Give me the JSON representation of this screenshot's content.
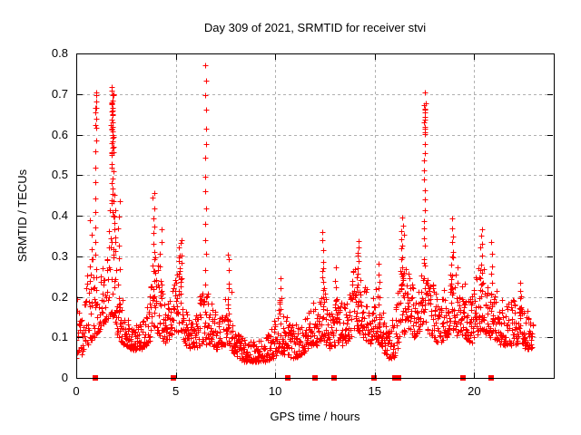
{
  "chart_data": {
    "type": "scatter",
    "title": "Day 309 of 2021, SRMTID for receiver stvi",
    "xlabel": "GPS time / hours",
    "ylabel": "SRMTID / TECUs",
    "xlim": [
      0,
      24
    ],
    "ylim": [
      0,
      0.8
    ],
    "xticks": {
      "values": [
        0,
        5,
        10,
        15,
        20
      ],
      "labels": [
        "0",
        "5",
        "10",
        "15",
        "20"
      ]
    },
    "yticks": {
      "values": [
        0,
        0.1,
        0.2,
        0.3,
        0.4,
        0.5,
        0.6,
        0.7,
        0.8
      ],
      "labels": [
        "0",
        "0.1",
        "0.2",
        "0.3",
        "0.4",
        "0.5",
        "0.6",
        "0.7",
        "0.8"
      ]
    },
    "grid": {
      "show": true,
      "color": "#b0b0b0",
      "dash": "3,3"
    },
    "border_color": "#000000",
    "marker": {
      "shape": "plus",
      "color": "#ff0000",
      "size": 7
    },
    "series_name": "SRMTID",
    "seed": 309,
    "sample_step_hours": 0.013,
    "x_start": 0,
    "x_end": 22.95,
    "band_skew": 1.6,
    "band_envelope": [
      [
        0.0,
        0.05,
        0.2
      ],
      [
        0.3,
        0.06,
        0.17
      ],
      [
        0.6,
        0.08,
        0.28
      ],
      [
        0.9,
        0.1,
        0.3
      ],
      [
        1.2,
        0.12,
        0.26
      ],
      [
        1.5,
        0.14,
        0.3
      ],
      [
        1.75,
        0.16,
        0.45
      ],
      [
        1.85,
        0.15,
        0.4
      ],
      [
        2.1,
        0.1,
        0.28
      ],
      [
        2.4,
        0.08,
        0.16
      ],
      [
        2.8,
        0.07,
        0.13
      ],
      [
        3.2,
        0.07,
        0.14
      ],
      [
        3.6,
        0.08,
        0.18
      ],
      [
        3.9,
        0.12,
        0.32
      ],
      [
        4.2,
        0.1,
        0.26
      ],
      [
        4.5,
        0.08,
        0.17
      ],
      [
        4.9,
        0.1,
        0.24
      ],
      [
        5.2,
        0.12,
        0.32
      ],
      [
        5.5,
        0.08,
        0.17
      ],
      [
        5.9,
        0.07,
        0.15
      ],
      [
        6.2,
        0.08,
        0.2
      ],
      [
        6.5,
        0.08,
        0.24
      ],
      [
        6.8,
        0.08,
        0.2
      ],
      [
        7.1,
        0.07,
        0.15
      ],
      [
        7.4,
        0.08,
        0.18
      ],
      [
        7.7,
        0.08,
        0.26
      ],
      [
        8.0,
        0.05,
        0.12
      ],
      [
        8.5,
        0.04,
        0.1
      ],
      [
        9.0,
        0.04,
        0.09
      ],
      [
        9.5,
        0.04,
        0.1
      ],
      [
        9.9,
        0.05,
        0.13
      ],
      [
        10.2,
        0.06,
        0.2
      ],
      [
        10.6,
        0.05,
        0.15
      ],
      [
        11.0,
        0.05,
        0.13
      ],
      [
        11.4,
        0.06,
        0.15
      ],
      [
        11.8,
        0.08,
        0.2
      ],
      [
        12.1,
        0.08,
        0.18
      ],
      [
        12.4,
        0.1,
        0.28
      ],
      [
        12.7,
        0.07,
        0.15
      ],
      [
        13.0,
        0.08,
        0.22
      ],
      [
        13.4,
        0.08,
        0.18
      ],
      [
        13.8,
        0.1,
        0.24
      ],
      [
        14.1,
        0.12,
        0.3
      ],
      [
        14.4,
        0.1,
        0.26
      ],
      [
        14.7,
        0.08,
        0.2
      ],
      [
        15.0,
        0.1,
        0.24
      ],
      [
        15.3,
        0.08,
        0.2
      ],
      [
        15.6,
        0.05,
        0.13
      ],
      [
        16.0,
        0.05,
        0.15
      ],
      [
        16.3,
        0.1,
        0.3
      ],
      [
        16.6,
        0.12,
        0.28
      ],
      [
        17.0,
        0.1,
        0.22
      ],
      [
        17.3,
        0.12,
        0.25
      ],
      [
        17.5,
        0.14,
        0.3
      ],
      [
        17.8,
        0.1,
        0.25
      ],
      [
        18.2,
        0.08,
        0.2
      ],
      [
        18.6,
        0.1,
        0.24
      ],
      [
        18.9,
        0.12,
        0.3
      ],
      [
        19.2,
        0.1,
        0.28
      ],
      [
        19.5,
        0.1,
        0.24
      ],
      [
        19.8,
        0.08,
        0.2
      ],
      [
        20.1,
        0.1,
        0.26
      ],
      [
        20.4,
        0.12,
        0.3
      ],
      [
        20.7,
        0.1,
        0.28
      ],
      [
        21.0,
        0.1,
        0.24
      ],
      [
        21.3,
        0.08,
        0.2
      ],
      [
        21.6,
        0.08,
        0.18
      ],
      [
        22.0,
        0.08,
        0.2
      ],
      [
        22.3,
        0.09,
        0.22
      ],
      [
        22.6,
        0.07,
        0.17
      ],
      [
        22.95,
        0.07,
        0.14
      ]
    ],
    "spikes": [
      [
        0.75,
        0.22,
        0.39,
        6,
        0.1
      ],
      [
        0.97,
        0.3,
        0.7,
        12,
        0.05
      ],
      [
        0.99,
        0.62,
        0.7,
        6,
        0.05
      ],
      [
        1.8,
        0.4,
        0.715,
        25,
        0.12
      ],
      [
        1.82,
        0.55,
        0.71,
        18,
        0.1
      ],
      [
        1.92,
        0.3,
        0.45,
        10,
        0.08
      ],
      [
        2.15,
        0.2,
        0.43,
        8,
        0.08
      ],
      [
        3.9,
        0.18,
        0.46,
        14,
        0.1
      ],
      [
        4.25,
        0.18,
        0.37,
        7,
        0.08
      ],
      [
        5.2,
        0.2,
        0.345,
        12,
        0.15
      ],
      [
        6.5,
        0.26,
        0.775,
        14,
        0.05
      ],
      [
        7.65,
        0.12,
        0.31,
        9,
        0.06
      ],
      [
        10.25,
        0.13,
        0.25,
        6,
        0.08
      ],
      [
        12.4,
        0.15,
        0.36,
        10,
        0.08
      ],
      [
        13.05,
        0.14,
        0.27,
        6,
        0.08
      ],
      [
        14.15,
        0.18,
        0.34,
        13,
        0.12
      ],
      [
        15.2,
        0.14,
        0.28,
        8,
        0.1
      ],
      [
        16.4,
        0.2,
        0.39,
        16,
        0.18
      ],
      [
        17.5,
        0.25,
        0.7,
        20,
        0.06
      ],
      [
        17.52,
        0.6,
        0.68,
        8,
        0.05
      ],
      [
        18.9,
        0.22,
        0.39,
        10,
        0.08
      ],
      [
        20.35,
        0.2,
        0.37,
        11,
        0.08
      ],
      [
        20.9,
        0.18,
        0.33,
        7,
        0.08
      ],
      [
        22.3,
        0.13,
        0.24,
        6,
        0.1
      ]
    ],
    "baseline_marker_hours": [
      0.95,
      4.9,
      10.65,
      12.0,
      12.95,
      14.95,
      16.0,
      16.1,
      16.2,
      19.45,
      20.85
    ],
    "baseline_marker_size": 6
  }
}
